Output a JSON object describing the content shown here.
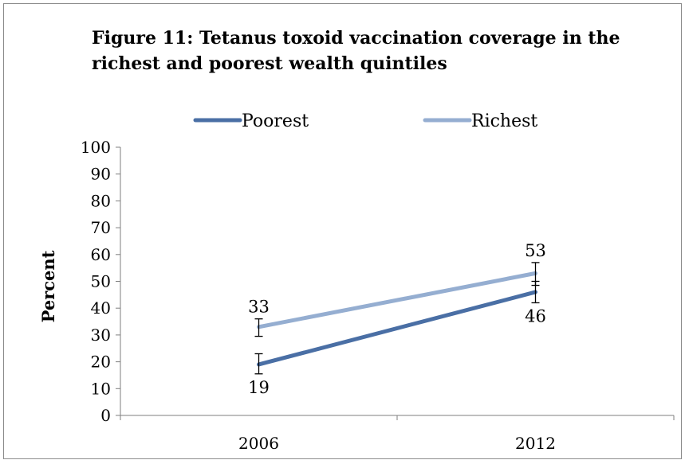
{
  "chart_data": {
    "type": "line",
    "title_lines": [
      "Figure 11: Tetanus toxoid vaccination coverage in the",
      "richest and poorest wealth quintiles"
    ],
    "xlabel": "",
    "ylabel": "Percent",
    "categories": [
      "2006",
      "2012"
    ],
    "ylim": [
      0,
      100
    ],
    "yticks": [
      0,
      10,
      20,
      30,
      40,
      50,
      60,
      70,
      80,
      90,
      100
    ],
    "grid": false,
    "legend_position": "top",
    "series": [
      {
        "name": "Poorest",
        "color": "#4a6fa5",
        "values": [
          19,
          46
        ],
        "error_low": [
          15.5,
          42
        ],
        "error_high": [
          23,
          50
        ],
        "data_labels": [
          "19",
          "46"
        ],
        "label_position": "below"
      },
      {
        "name": "Richest",
        "color": "#95aed1",
        "values": [
          33,
          53
        ],
        "error_low": [
          29.5,
          48.5
        ],
        "error_high": [
          36,
          57
        ],
        "data_labels": [
          "33",
          "53"
        ],
        "label_position": "above"
      }
    ]
  }
}
